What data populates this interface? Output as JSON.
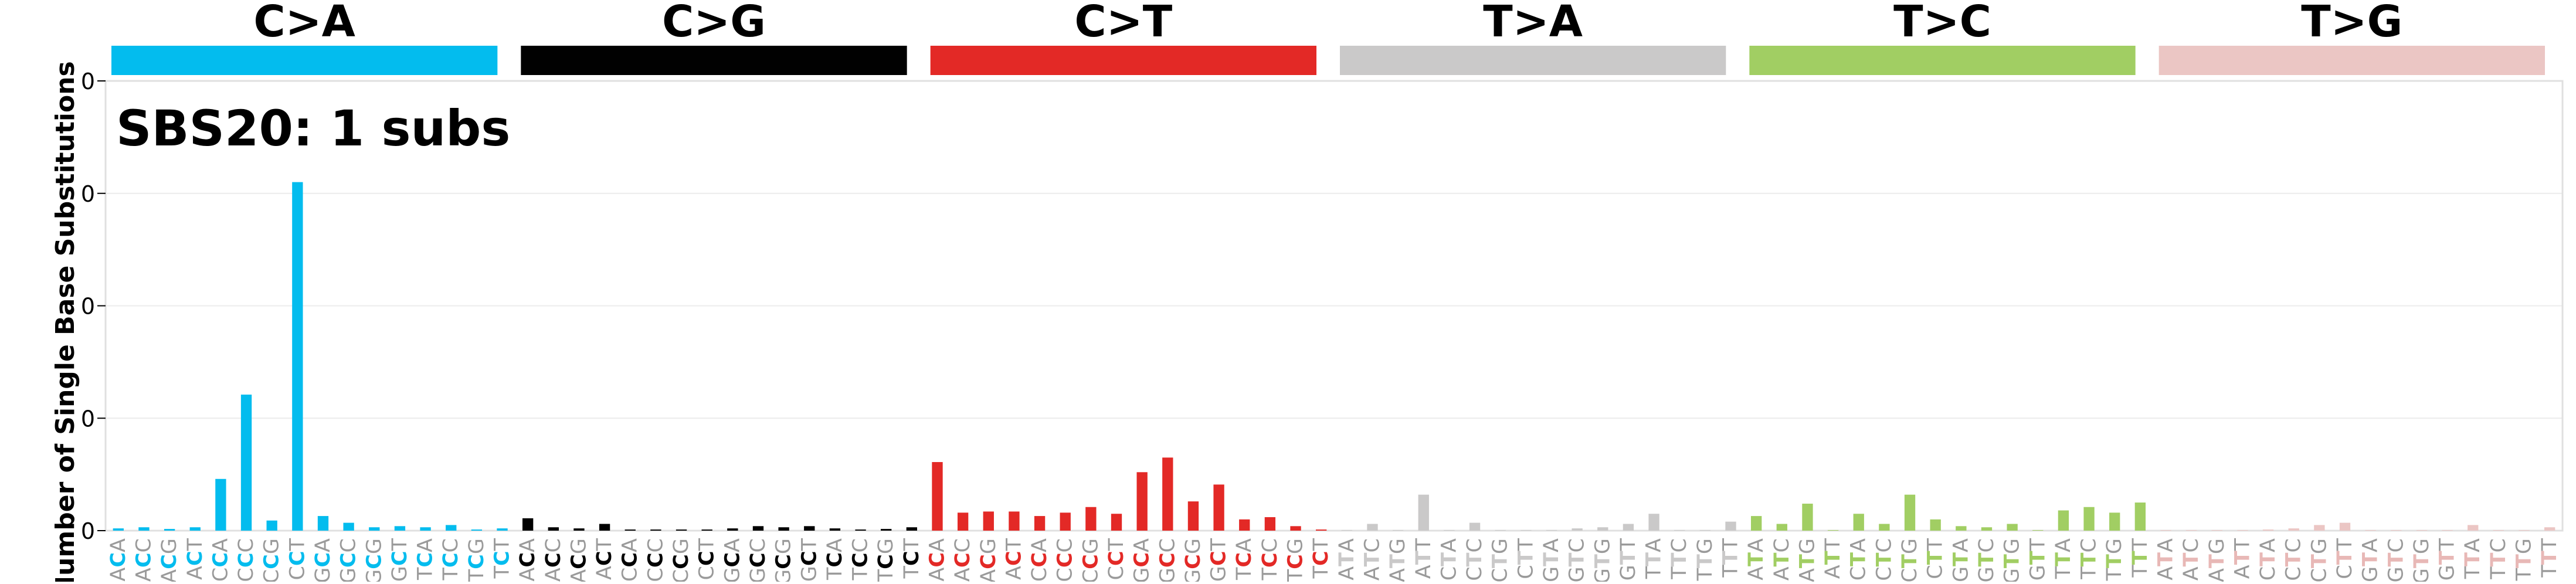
{
  "chart_data": {
    "type": "bar",
    "title": "SBS20: 1 subs",
    "ylabel": "Number of Single Base Substitutions",
    "ylim": [
      0,
      0.4
    ],
    "y_ticks": [
      "0",
      "0",
      "0",
      "0",
      "0"
    ],
    "grid": true,
    "legend": "top",
    "groups": [
      {
        "name": "C>A",
        "color": "#03bcee"
      },
      {
        "name": "C>G",
        "color": "#010101"
      },
      {
        "name": "C>T",
        "color": "#e32926"
      },
      {
        "name": "T>A",
        "color": "#cac9c9"
      },
      {
        "name": "T>C",
        "color": "#a1ce63"
      },
      {
        "name": "T>G",
        "color": "#ebc6c4"
      }
    ],
    "categories": [
      "ACA",
      "ACC",
      "ACG",
      "ACT",
      "CCA",
      "CCC",
      "CCG",
      "CCT",
      "GCA",
      "GCC",
      "GCG",
      "GCT",
      "TCA",
      "TCC",
      "TCG",
      "TCT",
      "ACA",
      "ACC",
      "ACG",
      "ACT",
      "CCA",
      "CCC",
      "CCG",
      "CCT",
      "GCA",
      "GCC",
      "GCG",
      "GCT",
      "TCA",
      "TCC",
      "TCG",
      "TCT",
      "ACA",
      "ACC",
      "ACG",
      "ACT",
      "CCA",
      "CCC",
      "CCG",
      "CCT",
      "GCA",
      "GCC",
      "GCG",
      "GCT",
      "TCA",
      "TCC",
      "TCG",
      "TCT",
      "ATA",
      "ATC",
      "ATG",
      "ATT",
      "CTA",
      "CTC",
      "CTG",
      "CTT",
      "GTA",
      "GTC",
      "GTG",
      "GTT",
      "TTA",
      "TTC",
      "TTG",
      "TTT",
      "ATA",
      "ATC",
      "ATG",
      "ATT",
      "CTA",
      "CTC",
      "CTG",
      "CTT",
      "GTA",
      "GTC",
      "GTG",
      "GTT",
      "TTA",
      "TTC",
      "TTG",
      "TTT",
      "ATA",
      "ATC",
      "ATG",
      "ATT",
      "CTA",
      "CTC",
      "CTG",
      "CTT",
      "GTA",
      "GTC",
      "GTG",
      "GTT",
      "TTA",
      "TTC",
      "TTG",
      "TTT"
    ],
    "values": [
      0.002,
      0.003,
      0.0015,
      0.003,
      0.046,
      0.121,
      0.009,
      0.31,
      0.013,
      0.007,
      0.003,
      0.004,
      0.003,
      0.005,
      0.001,
      0.002,
      0.011,
      0.003,
      0.002,
      0.006,
      0.001,
      0.001,
      0.001,
      0.001,
      0.002,
      0.004,
      0.003,
      0.004,
      0.002,
      0.001,
      0.0015,
      0.003,
      0.061,
      0.016,
      0.017,
      0.017,
      0.013,
      0.016,
      0.021,
      0.015,
      0.052,
      0.065,
      0.026,
      0.041,
      0.01,
      0.012,
      0.004,
      0.001,
      0.0005,
      0.006,
      0.0005,
      0.032,
      0.0005,
      0.007,
      0.0005,
      0.0005,
      0.0005,
      0.002,
      0.003,
      0.006,
      0.015,
      0.0005,
      0.0005,
      0.008,
      0.013,
      0.006,
      0.024,
      0.0005,
      0.015,
      0.006,
      0.032,
      0.01,
      0.004,
      0.003,
      0.006,
      0.0005,
      0.018,
      0.021,
      0.016,
      0.025,
      0.0005,
      0.0005,
      0.0005,
      0.0005,
      0.001,
      0.002,
      0.005,
      0.007,
      0.0005,
      0.0005,
      0.0005,
      0.0005,
      0.005,
      0.0005,
      0.0005,
      0.003
    ]
  }
}
